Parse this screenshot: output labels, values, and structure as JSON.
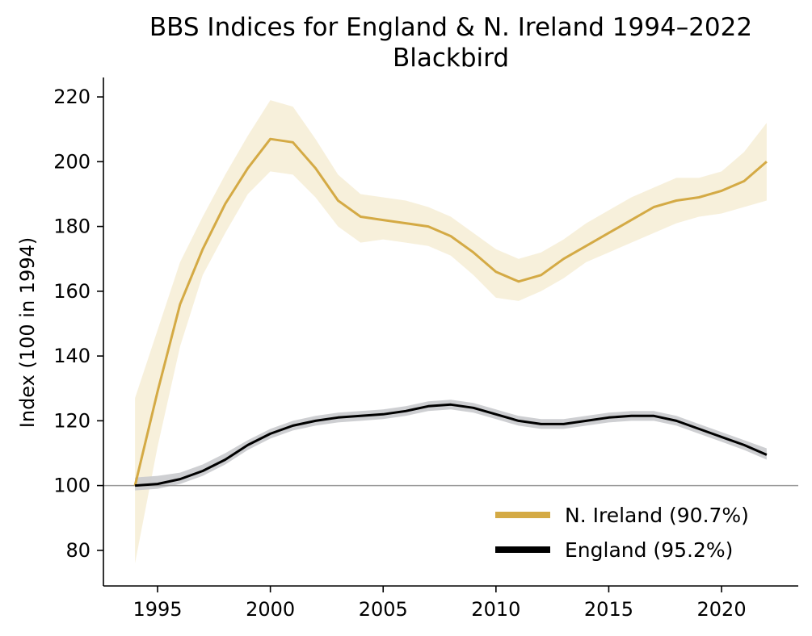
{
  "chart_data": {
    "type": "line",
    "title": "BBS Indices for England & N. Ireland 1994–2022",
    "subtitle": "Blackbird",
    "xlabel": "",
    "ylabel": "Index (100 in 1994)",
    "xlim": [
      1992.6,
      2023.4
    ],
    "ylim": [
      69,
      226
    ],
    "xticks": [
      1995,
      2000,
      2005,
      2010,
      2015,
      2020
    ],
    "yticks": [
      80,
      100,
      120,
      140,
      160,
      180,
      200,
      220
    ],
    "reference_line": 100,
    "legend_position": "lower-right",
    "x": [
      1994,
      1995,
      1996,
      1997,
      1998,
      1999,
      2000,
      2001,
      2002,
      2003,
      2004,
      2005,
      2006,
      2007,
      2008,
      2009,
      2010,
      2011,
      2012,
      2013,
      2014,
      2015,
      2016,
      2017,
      2018,
      2019,
      2020,
      2021,
      2022
    ],
    "series": [
      {
        "name": "N. Ireland (90.7%)",
        "color": "#d4aa45",
        "band_color": "#f5ecd2",
        "values": [
          100,
          129,
          156,
          173,
          187,
          198,
          207,
          206,
          198,
          188,
          183,
          182,
          181,
          180,
          177,
          172,
          166,
          163,
          165,
          170,
          174,
          178,
          182,
          186,
          188,
          189,
          191,
          194,
          200
        ],
        "lower": [
          76,
          112,
          143,
          165,
          178,
          190,
          197,
          196,
          189,
          180,
          175,
          176,
          175,
          174,
          171,
          165,
          158,
          157,
          160,
          164,
          169,
          172,
          175,
          178,
          181,
          183,
          184,
          186,
          188
        ],
        "upper": [
          127,
          148,
          169,
          183,
          196,
          208,
          219,
          217,
          207,
          196,
          190,
          189,
          188,
          186,
          183,
          178,
          173,
          170,
          172,
          176,
          181,
          185,
          189,
          192,
          195,
          195,
          197,
          203,
          212
        ]
      },
      {
        "name": "England (95.2%)",
        "color": "#000000",
        "band_color": "#c9cacd",
        "values": [
          100,
          100.5,
          102,
          104.5,
          108,
          112.5,
          116,
          118.5,
          120,
          121,
          121.5,
          122,
          123,
          124.5,
          125,
          124,
          122,
          120,
          119,
          119,
          120,
          121,
          121.5,
          121.5,
          120,
          117.5,
          115,
          112.5,
          109.5
        ],
        "lower": [
          98.5,
          99,
          100.5,
          103,
          106.5,
          111,
          114.5,
          117,
          118.5,
          119.5,
          120,
          120.5,
          121.5,
          123,
          123.5,
          122.5,
          120.5,
          118.5,
          117.5,
          117.5,
          118.5,
          119.5,
          120,
          120,
          118.5,
          116,
          113.5,
          111,
          108
        ],
        "upper": [
          102.5,
          103,
          104,
          106.5,
          110,
          114,
          117.5,
          120,
          121.5,
          122.5,
          123,
          123.5,
          124.5,
          126,
          126.5,
          125.5,
          123.5,
          121.5,
          120.5,
          120.5,
          121.5,
          122.5,
          123,
          123,
          121.5,
          119,
          116.5,
          114,
          111.5
        ]
      }
    ]
  }
}
